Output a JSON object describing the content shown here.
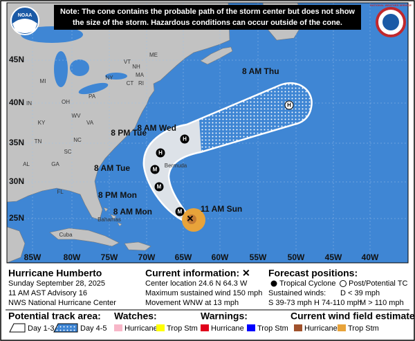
{
  "logos": {
    "noaa": "NOAA",
    "nws": "NATIONAL WEATHER SERVICE"
  },
  "note_lines": [
    "Note: The cone contains the probable path of the storm center but does not show",
    "the size of the storm. Hazardous conditions can occur outside of the cone."
  ],
  "map": {
    "latitude_labels": [
      "45N",
      "40N",
      "35N",
      "30N",
      "25N"
    ],
    "longitude_labels": [
      "85W",
      "80W",
      "75W",
      "70W",
      "65W",
      "60W",
      "55W",
      "50W",
      "45W",
      "40W"
    ],
    "place_labels": [
      "ME",
      "VT",
      "NH",
      "NY",
      "MA",
      "CT",
      "RI",
      "MI",
      "PA",
      "OH",
      "IN",
      "WV",
      "VA",
      "KY",
      "TN",
      "NC",
      "SC",
      "GA",
      "AL",
      "FL",
      "Bermuda",
      "Bahamas",
      "Cuba"
    ]
  },
  "forecast_points": [
    {
      "time": "8 AM Thu",
      "category": "H"
    },
    {
      "time": "8 AM Wed",
      "category": "H"
    },
    {
      "time": "8 PM Tue",
      "category": "H"
    },
    {
      "time": "8 AM Tue",
      "category": "M"
    },
    {
      "time": "8 PM Mon",
      "category": "M"
    },
    {
      "time": "8 AM Mon",
      "category": "M"
    }
  ],
  "current_point_label": "11 AM Sun",
  "info": {
    "storm_name": "Hurricane Humberto",
    "date": "Sunday September 28, 2025",
    "advisory": "11 AM AST Advisory 16",
    "issuer": "NWS National Hurricane Center"
  },
  "current_information": {
    "heading": "Current information:",
    "symbol": "✕",
    "lines": [
      "Center location 24.6 N 64.3 W",
      "Maximum sustained wind 150 mph",
      "Movement WNW at 13 mph"
    ]
  },
  "forecast_positions": {
    "heading": "Forecast positions:",
    "tropical": "Tropical Cyclone",
    "post": "Post/Potential TC",
    "winds_heading": "Sustained winds:",
    "d": "D < 39 mph",
    "s": "S 39-73 mph",
    "h": "H 74-110 mph",
    "m": "M > 110 mph"
  },
  "legend": {
    "track": {
      "heading": "Potential track area:",
      "items": [
        "Day 1-3",
        "Day 4-5"
      ]
    },
    "watches": {
      "heading": "Watches:",
      "items": [
        "Hurricane",
        "Trop Stm"
      ]
    },
    "warnings": {
      "heading": "Warnings:",
      "items": [
        "Hurricane",
        "Trop Stm"
      ]
    },
    "wind": {
      "heading": "Current wind field estimate:",
      "items": [
        "Hurricane",
        "Trop Stm"
      ]
    }
  }
}
